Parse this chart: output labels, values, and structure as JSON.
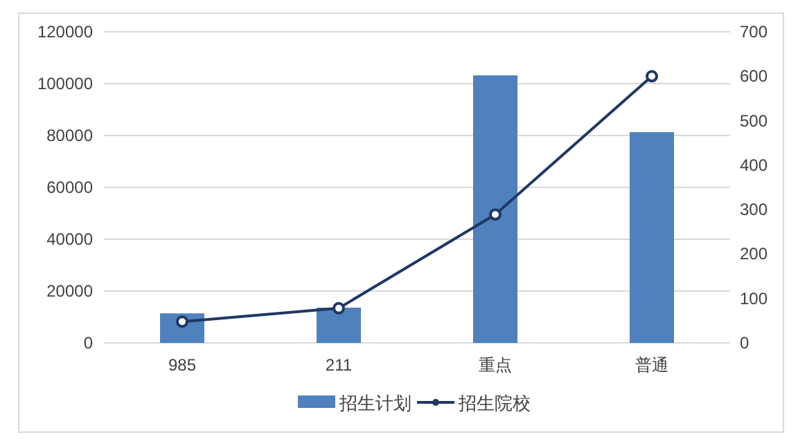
{
  "chart_data": {
    "type": "bar",
    "categories": [
      "985",
      "211",
      "重点",
      "普通"
    ],
    "series": [
      {
        "name": "招生计划",
        "color": "#4f81bd",
        "values": [
          11400,
          13600,
          103200,
          81300
        ]
      },
      {
        "name": "招生院校",
        "type": "line",
        "axis": "y2",
        "color": "#1f3864",
        "marker": "circle",
        "values": [
          48,
          78,
          289,
          600
        ]
      }
    ],
    "ylim": [
      0,
      120000
    ],
    "yticks": [
      0,
      20000,
      40000,
      60000,
      80000,
      100000,
      120000
    ],
    "y2lim": [
      0,
      700
    ],
    "y2ticks": [
      0,
      100,
      200,
      300,
      400,
      500,
      600,
      700
    ],
    "grid": "y",
    "legend": "bottom"
  }
}
